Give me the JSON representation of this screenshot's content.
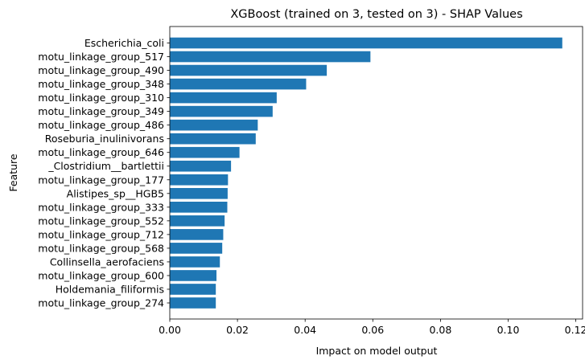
{
  "chart_data": {
    "type": "bar",
    "orientation": "horizontal",
    "title": "XGBoost (trained on 3, tested on 3) -  SHAP Values",
    "xlabel": "Impact on model output",
    "ylabel": "Feature",
    "xlim": [
      0,
      0.122
    ],
    "xticks": [
      0.0,
      0.02,
      0.04,
      0.06,
      0.08,
      0.1,
      0.12
    ],
    "xtick_labels": [
      "0.00",
      "0.02",
      "0.04",
      "0.06",
      "0.08",
      "0.10",
      "0.12"
    ],
    "grid": false,
    "bar_color": "#1f77b4",
    "categories": [
      "Escherichia_coli",
      "motu_linkage_group_517",
      "motu_linkage_group_490",
      "motu_linkage_group_348",
      "motu_linkage_group_310",
      "motu_linkage_group_349",
      "motu_linkage_group_486",
      "Roseburia_inulinivorans",
      "motu_linkage_group_646",
      "_Clostridium__bartlettii",
      "motu_linkage_group_177",
      "Alistipes_sp__HGB5",
      "motu_linkage_group_333",
      "motu_linkage_group_552",
      "motu_linkage_group_712",
      "motu_linkage_group_568",
      "Collinsella_aerofaciens",
      "motu_linkage_group_600",
      "Holdemania_filiformis",
      "motu_linkage_group_274"
    ],
    "values": [
      0.116,
      0.0593,
      0.0464,
      0.0403,
      0.0316,
      0.0304,
      0.026,
      0.0254,
      0.0206,
      0.0181,
      0.0172,
      0.0171,
      0.017,
      0.0162,
      0.0158,
      0.0155,
      0.0148,
      0.0138,
      0.0136,
      0.0136
    ]
  }
}
